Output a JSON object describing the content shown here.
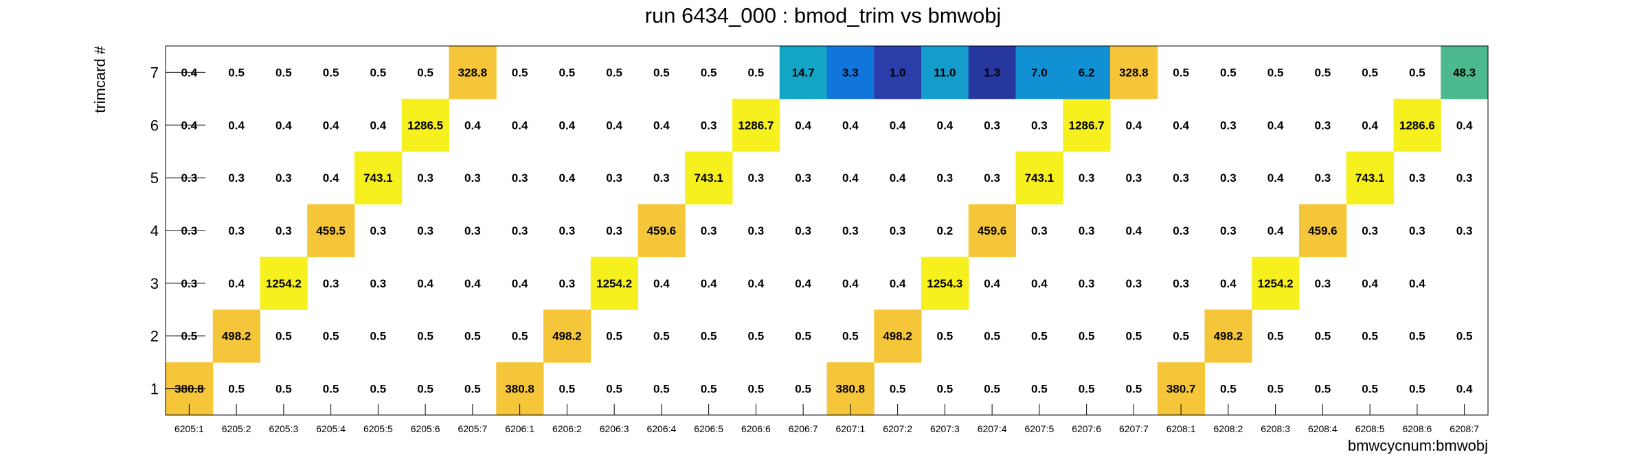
{
  "chart_data": {
    "type": "heatmap",
    "title": "run 6434_000 : bmod_trim vs bmwobj",
    "xlabel": "bmwcycnum:bmwobj",
    "ylabel": "trimcard #",
    "x_categories": [
      "6205:1",
      "6205:2",
      "6205:3",
      "6205:4",
      "6205:5",
      "6205:6",
      "6205:7",
      "6206:1",
      "6206:2",
      "6206:3",
      "6206:4",
      "6206:5",
      "6206:6",
      "6206:7",
      "6207:1",
      "6207:2",
      "6207:3",
      "6207:4",
      "6207:5",
      "6207:6",
      "6207:7",
      "6208:1",
      "6208:2",
      "6208:3",
      "6208:4",
      "6208:5",
      "6208:6",
      "6208:7"
    ],
    "y_categories": [
      "1",
      "2",
      "3",
      "4",
      "5",
      "6",
      "7"
    ],
    "values": [
      [
        380.8,
        0.5,
        0.5,
        0.5,
        0.5,
        0.5,
        0.5,
        380.8,
        0.5,
        0.5,
        0.5,
        0.5,
        0.5,
        0.5,
        380.8,
        0.5,
        0.5,
        0.5,
        0.5,
        0.5,
        0.5,
        380.7,
        0.5,
        0.5,
        0.5,
        0.5,
        0.5,
        0.4
      ],
      [
        0.5,
        498.2,
        0.5,
        0.5,
        0.5,
        0.5,
        0.5,
        0.5,
        498.2,
        0.5,
        0.5,
        0.5,
        0.5,
        0.5,
        0.5,
        498.2,
        0.5,
        0.5,
        0.5,
        0.5,
        0.5,
        0.5,
        498.2,
        0.5,
        0.5,
        0.5,
        0.5,
        0.5
      ],
      [
        0.3,
        0.4,
        1254.2,
        0.3,
        0.3,
        0.4,
        0.4,
        0.4,
        0.3,
        1254.2,
        0.4,
        0.4,
        0.4,
        0.4,
        0.4,
        0.4,
        1254.3,
        0.4,
        0.4,
        0.3,
        0.3,
        0.3,
        0.4,
        1254.2,
        0.3,
        0.4,
        0.4,
        null
      ],
      [
        0.3,
        0.3,
        0.3,
        459.5,
        0.3,
        0.3,
        0.3,
        0.3,
        0.3,
        0.3,
        459.6,
        0.3,
        0.3,
        0.3,
        0.3,
        0.3,
        0.2,
        459.6,
        0.3,
        0.3,
        0.4,
        0.3,
        0.3,
        0.4,
        459.6,
        0.3,
        0.3,
        0.3
      ],
      [
        0.3,
        0.3,
        0.3,
        0.4,
        743.1,
        0.3,
        0.3,
        0.3,
        0.4,
        0.3,
        0.3,
        743.1,
        0.3,
        0.3,
        0.4,
        0.4,
        0.3,
        0.3,
        743.1,
        0.3,
        0.3,
        0.3,
        0.3,
        0.4,
        0.3,
        743.1,
        0.3,
        0.3
      ],
      [
        0.4,
        0.4,
        0.4,
        0.4,
        0.4,
        1286.5,
        0.4,
        0.4,
        0.4,
        0.4,
        0.4,
        0.3,
        1286.7,
        0.4,
        0.4,
        0.4,
        0.4,
        0.3,
        0.3,
        1286.7,
        0.4,
        0.4,
        0.3,
        0.4,
        0.3,
        0.4,
        1286.6,
        0.4
      ],
      [
        0.4,
        0.5,
        0.5,
        0.5,
        0.5,
        0.5,
        328.8,
        0.5,
        0.5,
        0.5,
        0.5,
        0.5,
        0.5,
        14.7,
        3.3,
        1.0,
        11.0,
        1.3,
        7.0,
        6.2,
        328.8,
        0.5,
        0.5,
        0.5,
        0.5,
        0.5,
        0.5,
        48.3
      ]
    ],
    "cell_colors": {
      "#f6c63a": [
        380.8,
        380.7,
        498.2,
        459.5,
        459.6,
        328.8
      ],
      "#f5f01e": [
        1254.2,
        1254.3,
        743.1,
        1286.5,
        1286.7,
        1286.6
      ],
      "#12a6c4": [
        14.7
      ],
      "#1176dc": [
        3.3
      ],
      "#2a3da8": [
        1.0
      ],
      "#149ccc": [
        11.0
      ],
      "#26389e": [
        1.3
      ],
      "#1191d4": [
        7.0,
        6.2
      ],
      "#4cba8e": [
        48.3
      ]
    },
    "grid": false
  }
}
